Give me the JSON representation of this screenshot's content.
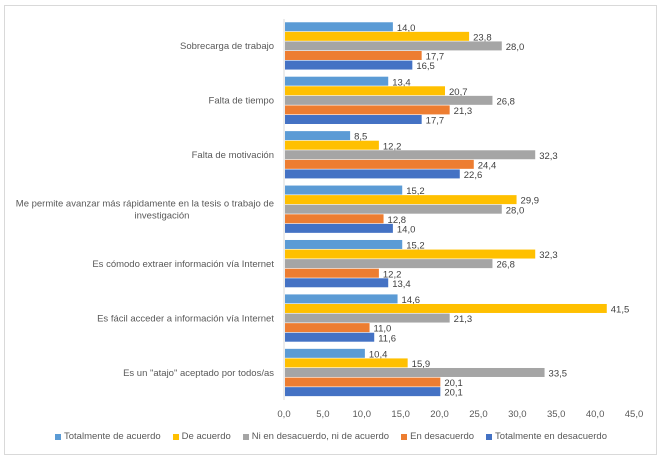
{
  "chart_data": {
    "type": "bar",
    "orientation": "horizontal",
    "title": "",
    "xlabel": "",
    "ylabel": "",
    "xlim": [
      0,
      45
    ],
    "x_ticks": [
      "0,0",
      "5,0",
      "10,0",
      "15,0",
      "20,0",
      "25,0",
      "30,0",
      "35,0",
      "40,0",
      "45,0"
    ],
    "x_tick_values": [
      0,
      5,
      10,
      15,
      20,
      25,
      30,
      35,
      40,
      45
    ],
    "grid": false,
    "legend_position": "bottom",
    "categories": [
      "Sobrecarga de trabajo",
      "Falta de tiempo",
      "Falta de motivación",
      "Me permite avanzar más rápidamente en la tesis o trabajo de investigación",
      "Es cómodo extraer información vía Internet",
      "Es fácil acceder a información vía Internet",
      "Es un \"atajo\" aceptado por todos/as"
    ],
    "category_lines": [
      [
        "Sobrecarga de trabajo"
      ],
      [
        "Falta de tiempo"
      ],
      [
        "Falta de motivación"
      ],
      [
        "Me permite avanzar más rápidamente en la tesis o trabajo de",
        "investigación"
      ],
      [
        "Es cómodo extraer información vía Internet"
      ],
      [
        "Es fácil acceder a información vía Internet"
      ],
      [
        "Es un \"atajo\" aceptado por todos/as"
      ]
    ],
    "series": [
      {
        "name": "Totalmente de acuerdo",
        "color": "#5B9BD5",
        "values": [
          14.0,
          13.4,
          8.5,
          15.2,
          15.2,
          14.6,
          10.4
        ],
        "labels": [
          "14,0",
          "13,4",
          "8,5",
          "15,2",
          "15,2",
          "14,6",
          "10,4"
        ]
      },
      {
        "name": "De acuerdo",
        "color": "#FFC000",
        "values": [
          23.8,
          20.7,
          12.2,
          29.9,
          32.3,
          41.5,
          15.9
        ],
        "labels": [
          "23,8",
          "20,7",
          "12,2",
          "29,9",
          "32,3",
          "41,5",
          "15,9"
        ]
      },
      {
        "name": "Ni en desacuerdo, ni de acuerdo",
        "color": "#A5A5A5",
        "values": [
          28.0,
          26.8,
          32.3,
          28.0,
          26.8,
          21.3,
          33.5
        ],
        "labels": [
          "28,0",
          "26,8",
          "32,3",
          "28,0",
          "26,8",
          "21,3",
          "33,5"
        ]
      },
      {
        "name": "En desacuerdo",
        "color": "#ED7D31",
        "values": [
          17.7,
          21.3,
          24.4,
          12.8,
          12.2,
          11.0,
          20.1
        ],
        "labels": [
          "17,7",
          "21,3",
          "24,4",
          "12,8",
          "12,2",
          "11,0",
          "20,1"
        ]
      },
      {
        "name": "Totalmente en desacuerdo",
        "color": "#4472C4",
        "values": [
          16.5,
          17.7,
          22.6,
          14.0,
          13.4,
          11.6,
          20.1
        ],
        "labels": [
          "16,5",
          "17,7",
          "22,6",
          "14,0",
          "13,4",
          "11,6",
          "20,1"
        ]
      }
    ]
  }
}
